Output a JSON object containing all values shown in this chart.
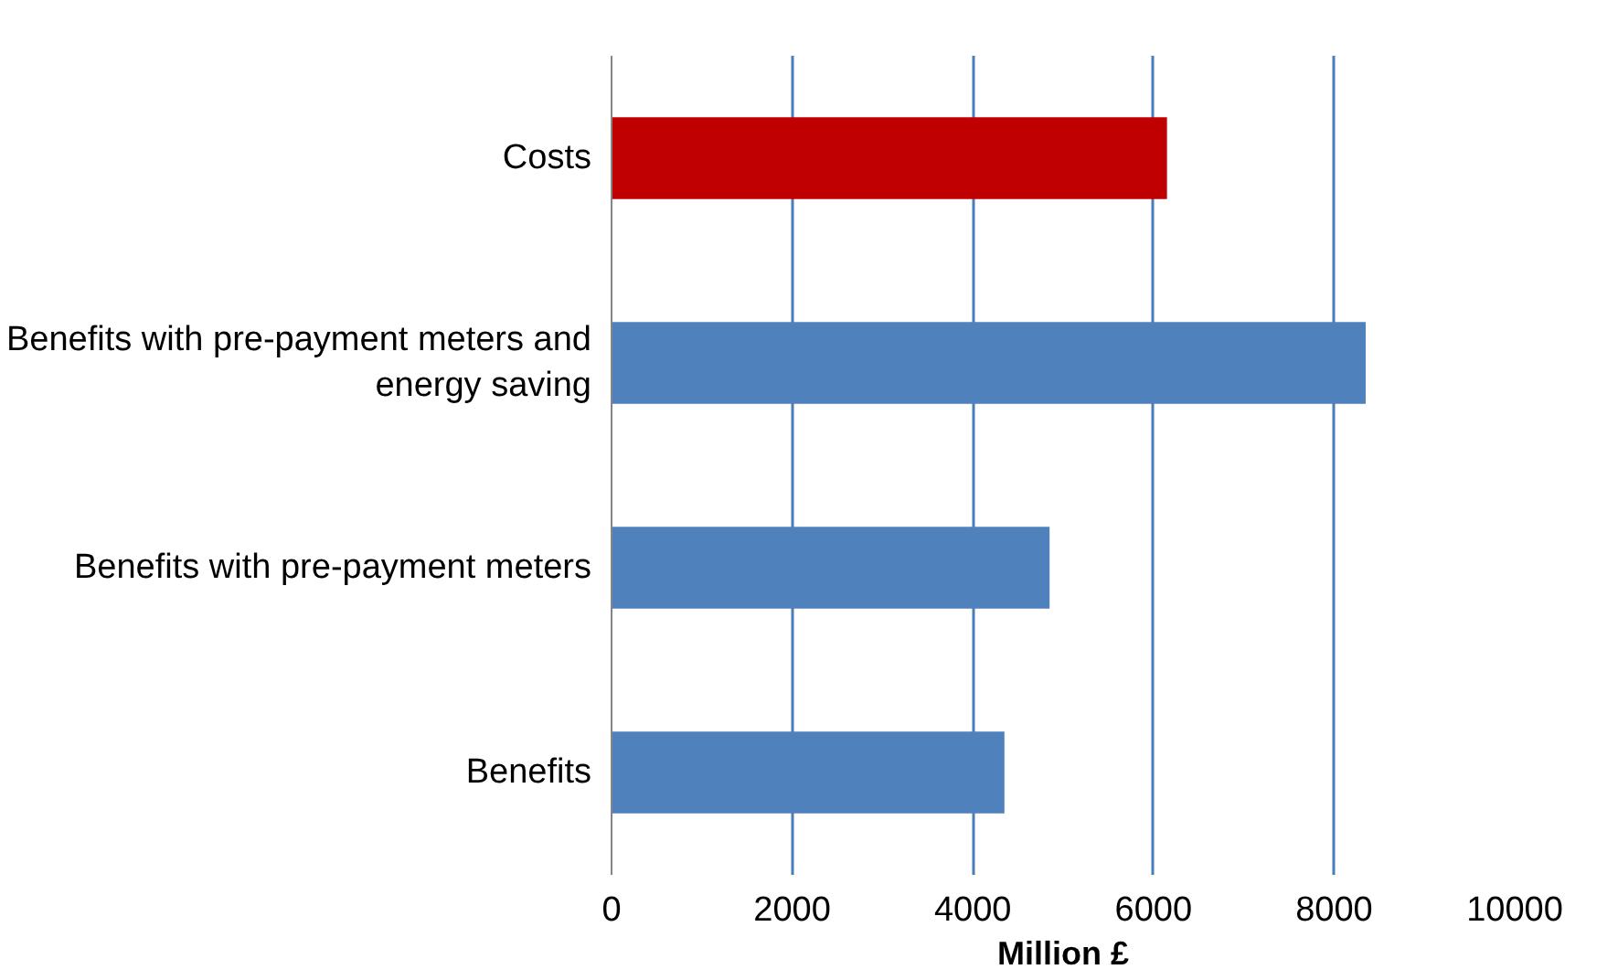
{
  "chart_data": {
    "type": "bar",
    "orientation": "horizontal",
    "xlabel": "Million £",
    "categories": [
      "Costs",
      "Benefits with pre-payment meters and energy saving",
      "Benefits with pre-payment meters",
      "Benefits"
    ],
    "values": [
      6150,
      8350,
      4850,
      4350
    ],
    "colors": [
      "#c00000",
      "#4f81bd",
      "#4f81bd",
      "#4f81bd"
    ],
    "xlim": [
      0,
      10000
    ],
    "xticks": [
      0,
      2000,
      4000,
      6000,
      8000,
      10000
    ],
    "grid": "x"
  }
}
